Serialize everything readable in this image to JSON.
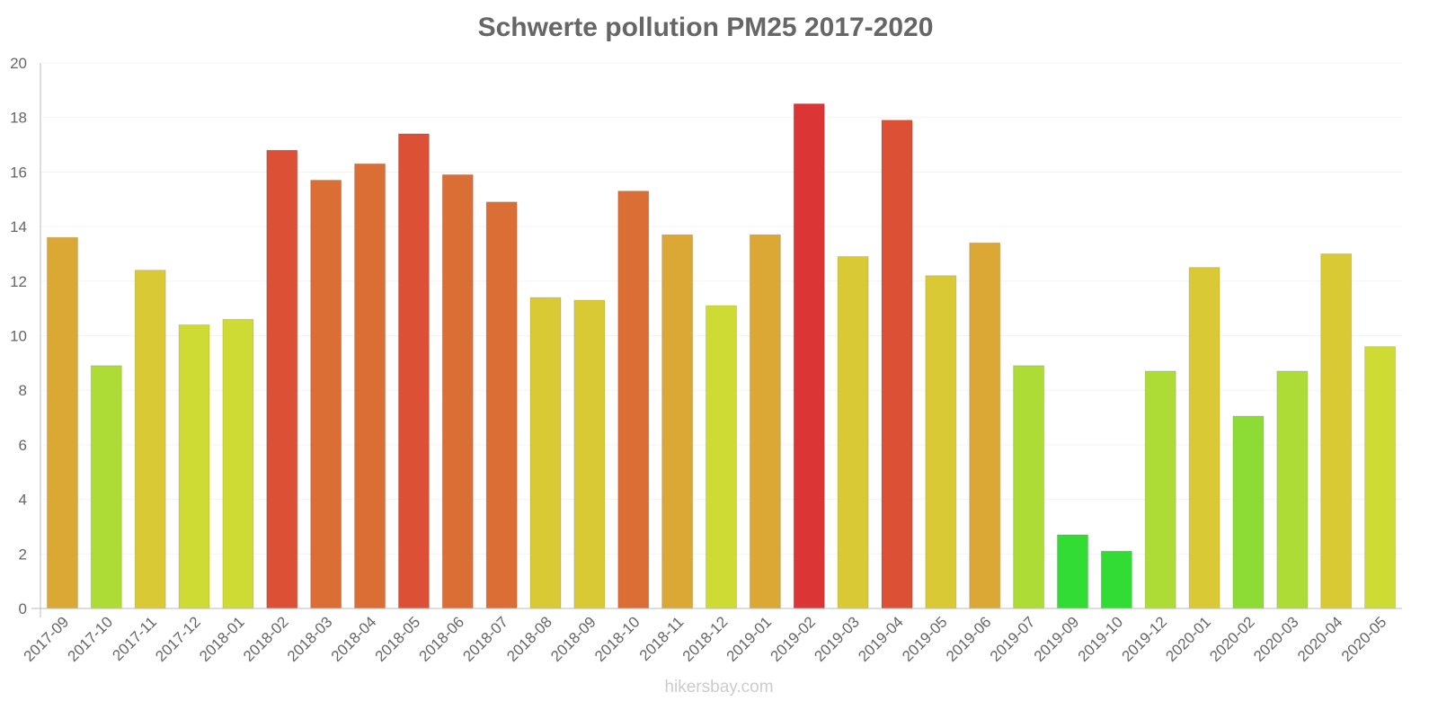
{
  "chart_data": {
    "type": "bar",
    "title": "Schwerte pollution PM25 2017-2020",
    "xlabel": "",
    "ylabel": "",
    "ylim": [
      0,
      20
    ],
    "yticks": [
      0,
      2,
      4,
      6,
      8,
      10,
      12,
      14,
      16,
      18,
      20
    ],
    "grid": true,
    "categories": [
      "2017-09",
      "2017-10",
      "2017-11",
      "2017-12",
      "2018-01",
      "2018-02",
      "2018-03",
      "2018-04",
      "2018-05",
      "2018-06",
      "2018-07",
      "2018-08",
      "2018-09",
      "2018-10",
      "2018-11",
      "2018-12",
      "2019-01",
      "2019-02",
      "2019-03",
      "2019-04",
      "2019-05",
      "2019-06",
      "2019-07",
      "2019-09",
      "2019-10",
      "2019-12",
      "2020-01",
      "2020-02",
      "2020-03",
      "2020-04",
      "2020-05"
    ],
    "values": [
      13.6,
      8.9,
      12.4,
      10.4,
      10.6,
      16.8,
      15.7,
      16.3,
      17.4,
      15.9,
      14.9,
      11.4,
      11.3,
      15.3,
      13.7,
      11.1,
      13.7,
      18.5,
      12.9,
      17.9,
      12.2,
      13.4,
      8.9,
      2.7,
      2.1,
      8.7,
      12.5,
      7.05,
      8.7,
      13.0,
      9.6
    ],
    "colors": [
      "#dba835",
      "#acdc35",
      "#d9ca35",
      "#cedb35",
      "#cedb35",
      "#dc5035",
      "#db6e35",
      "#db6e35",
      "#dc5035",
      "#db6e35",
      "#db6e35",
      "#d9ca35",
      "#d9ca35",
      "#db6e35",
      "#dba835",
      "#cedb35",
      "#dba835",
      "#db3535",
      "#d9ca35",
      "#dc5035",
      "#d9ca35",
      "#dba835",
      "#acdc35",
      "#33dc35",
      "#33dc35",
      "#acdc35",
      "#d9ca35",
      "#8ddc35",
      "#acdc35",
      "#d9ca35",
      "#cedb35"
    ]
  },
  "footer": "hikersbay.com"
}
